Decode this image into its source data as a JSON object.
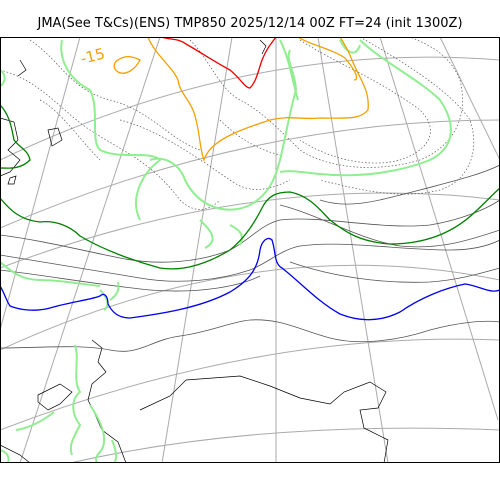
{
  "title": "JMA(See T&Cs)(ENS) TMP850 2025/12/14 00Z FT=24 (init 1300Z)",
  "contour_label": "-15",
  "colors": {
    "background": "#ffffff",
    "frame": "#000000",
    "graticule": "#aaaaaa",
    "coast": "#000000",
    "isotherm_gray": "#555555",
    "isotherm_dotted": "#555555",
    "isotherm_green": "#008000",
    "isotherm_blue": "#0000ee",
    "isotherm_orange": "#f5a000",
    "isotherm_red": "#ee0000",
    "light_green": "#90ee90"
  }
}
